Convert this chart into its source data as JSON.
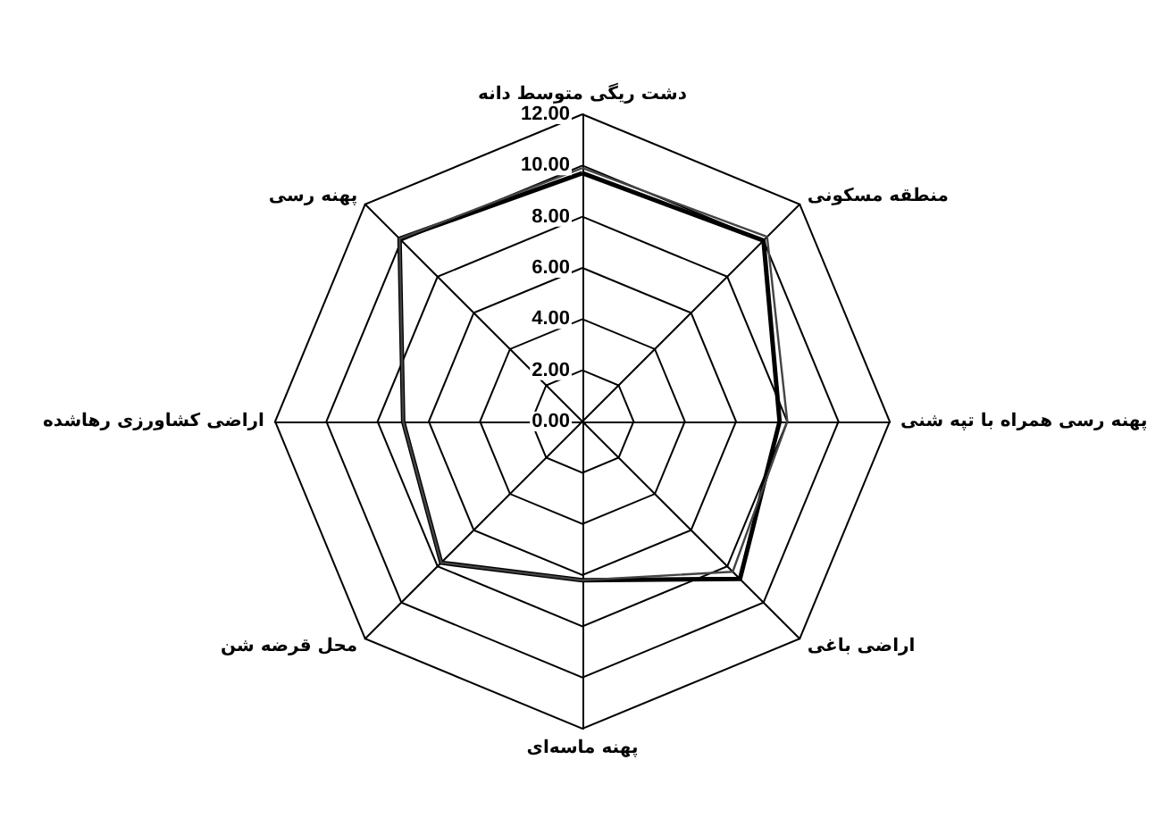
{
  "chart_data": {
    "type": "radar",
    "categories": [
      "دشت ریگی متوسط دانه",
      "منطقه مسکونی",
      "پهنه رسی همراه با تپه شنی",
      "اراضی باغی",
      "پهنه ماسه‌ای",
      "محل قرضه شن",
      "اراضی کشاورزی رهاشده",
      "پهنه رسی"
    ],
    "series": [
      {
        "color": "#000000",
        "values": [
          9.7,
          10.0,
          7.7,
          8.7,
          6.2,
          7.8,
          7.0,
          10.1
        ]
      },
      {
        "color": "#444444",
        "values": [
          9.9,
          10.2,
          8.0,
          8.3,
          6.2,
          7.8,
          7.0,
          10.1
        ]
      }
    ],
    "ylim": [
      0,
      12
    ],
    "yticks": [
      {
        "value": 0,
        "label": "0.00"
      },
      {
        "value": 2,
        "label": "2.00"
      },
      {
        "value": 4,
        "label": "4.00"
      },
      {
        "value": 6,
        "label": "6.00"
      },
      {
        "value": 8,
        "label": "8.00"
      },
      {
        "value": 10,
        "label": "10.00"
      },
      {
        "value": 12,
        "label": "12.00"
      }
    ],
    "grid": true,
    "marker": "none",
    "line_style": "solid"
  }
}
